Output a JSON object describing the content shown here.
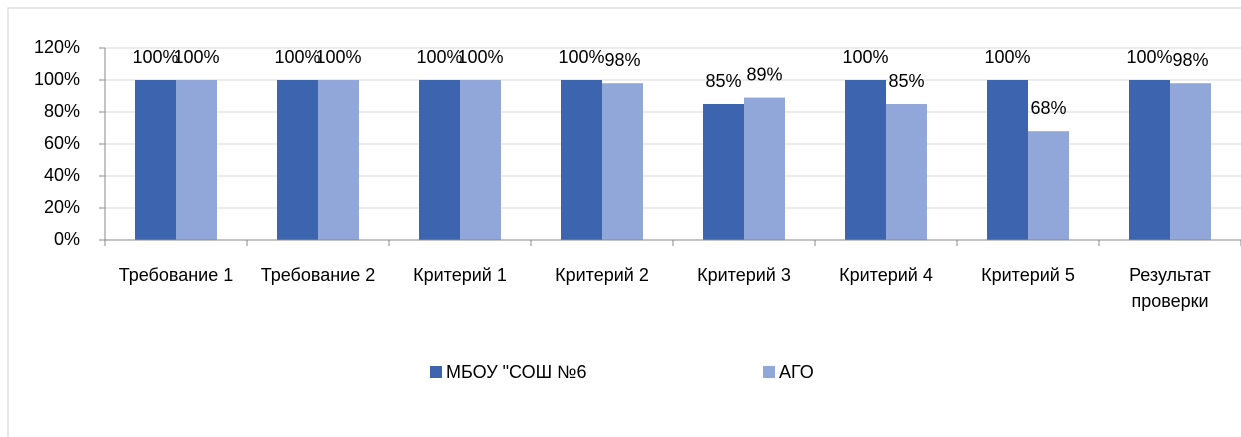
{
  "chart_data": {
    "type": "bar",
    "categories": [
      "Требование 1",
      "Требование 2",
      "Критерий 1",
      "Критерий 2",
      "Критерий 3",
      "Критерий 4",
      "Критерий 5",
      "Результат проверки"
    ],
    "series": [
      {
        "name": "МБОУ \"СОШ №6",
        "color": "#3d64ae",
        "values": [
          100,
          100,
          100,
          100,
          85,
          100,
          100,
          100
        ],
        "value_labels": [
          "100%",
          "100%",
          "100%",
          "100%",
          "85%",
          "100%",
          "100%",
          "100%"
        ]
      },
      {
        "name": "АГО",
        "color": "#91a7d9",
        "values": [
          100,
          100,
          100,
          98,
          89,
          85,
          68,
          98
        ],
        "value_labels": [
          "100%",
          "100%",
          "100%",
          "98%",
          "89%",
          "85%",
          "68%",
          "98%"
        ]
      }
    ],
    "ylim": [
      0,
      120
    ],
    "yticks": [
      {
        "value": 0,
        "label": "0%"
      },
      {
        "value": 20,
        "label": "20%"
      },
      {
        "value": 40,
        "label": "40%"
      },
      {
        "value": 60,
        "label": "60%"
      },
      {
        "value": 80,
        "label": "80%"
      },
      {
        "value": 100,
        "label": "100%"
      },
      {
        "value": 120,
        "label": "120%"
      }
    ],
    "grid": true,
    "legend": "bottom"
  }
}
